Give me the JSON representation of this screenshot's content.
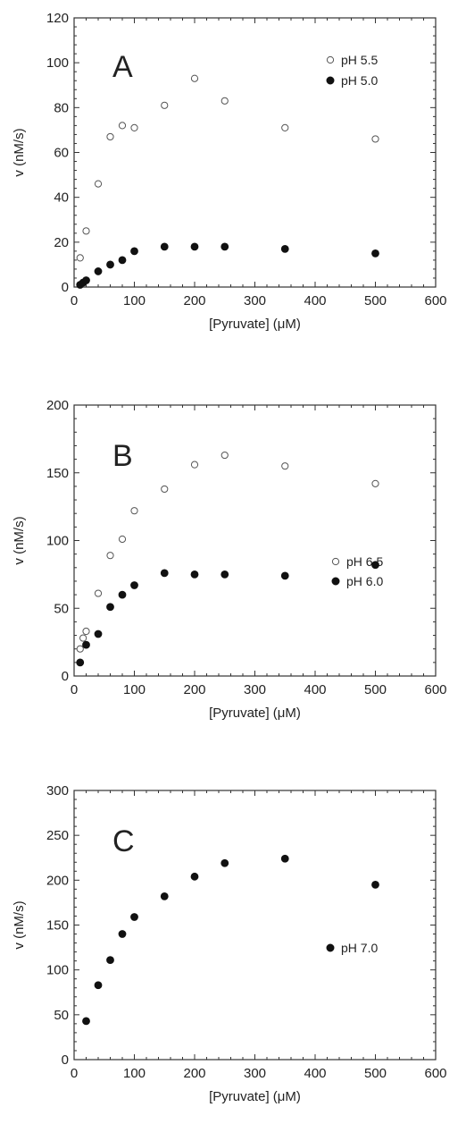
{
  "chart_data": [
    {
      "type": "scatter",
      "panel_label": "A",
      "xlabel": "[Pyruvate]   (μM)",
      "ylabel": "v   (nM/s)",
      "xlim": [
        0,
        600
      ],
      "ylim": [
        0,
        120
      ],
      "xticks": [
        0,
        100,
        200,
        300,
        400,
        500,
        600
      ],
      "yticks": [
        0,
        20,
        40,
        60,
        80,
        100,
        120
      ],
      "legend_position": "top-right",
      "series": [
        {
          "name": "pH 5.5",
          "marker": "open-circle",
          "x": [
            10,
            20,
            40,
            60,
            80,
            100,
            150,
            200,
            250,
            350,
            500
          ],
          "y": [
            13,
            25,
            46,
            67,
            72,
            71,
            81,
            93,
            83,
            71,
            66
          ]
        },
        {
          "name": "pH 5.0",
          "marker": "filled-circle",
          "x": [
            10,
            15,
            20,
            40,
            60,
            80,
            100,
            150,
            200,
            250,
            350,
            500
          ],
          "y": [
            1,
            2,
            3,
            7,
            10,
            12,
            16,
            18,
            18,
            18,
            17,
            15
          ]
        }
      ]
    },
    {
      "type": "scatter",
      "panel_label": "B",
      "xlabel": "[Pyruvate]   (μM)",
      "ylabel": "v   (nM/s)",
      "xlim": [
        0,
        600
      ],
      "ylim": [
        0,
        200
      ],
      "xticks": [
        0,
        100,
        200,
        300,
        400,
        500,
        600
      ],
      "yticks": [
        0,
        50,
        100,
        150,
        200
      ],
      "legend_position": "lower-right",
      "series": [
        {
          "name": "pH 6.5",
          "marker": "open-circle",
          "x": [
            10,
            15,
            20,
            40,
            60,
            80,
            100,
            150,
            200,
            250,
            350,
            500
          ],
          "y": [
            20,
            28,
            33,
            61,
            89,
            101,
            122,
            138,
            156,
            163,
            155,
            142
          ]
        },
        {
          "name": "pH 6.0",
          "marker": "filled-circle",
          "x": [
            10,
            20,
            40,
            60,
            80,
            100,
            150,
            200,
            250,
            350,
            500
          ],
          "y": [
            10,
            23,
            31,
            51,
            60,
            67,
            76,
            75,
            75,
            74,
            82
          ]
        }
      ]
    },
    {
      "type": "scatter",
      "panel_label": "C",
      "xlabel": "[Pyruvate]   (μM)",
      "ylabel": "v   (nM/s)",
      "xlim": [
        0,
        600
      ],
      "ylim": [
        0,
        300
      ],
      "xticks": [
        0,
        100,
        200,
        300,
        400,
        500,
        600
      ],
      "yticks": [
        0,
        50,
        100,
        150,
        200,
        250,
        300
      ],
      "legend_position": "lower-right",
      "series": [
        {
          "name": "pH 7.0",
          "marker": "filled-circle",
          "x": [
            20,
            40,
            60,
            80,
            100,
            150,
            200,
            250,
            350,
            500
          ],
          "y": [
            43,
            83,
            111,
            140,
            159,
            182,
            204,
            219,
            224,
            195
          ]
        }
      ]
    }
  ]
}
